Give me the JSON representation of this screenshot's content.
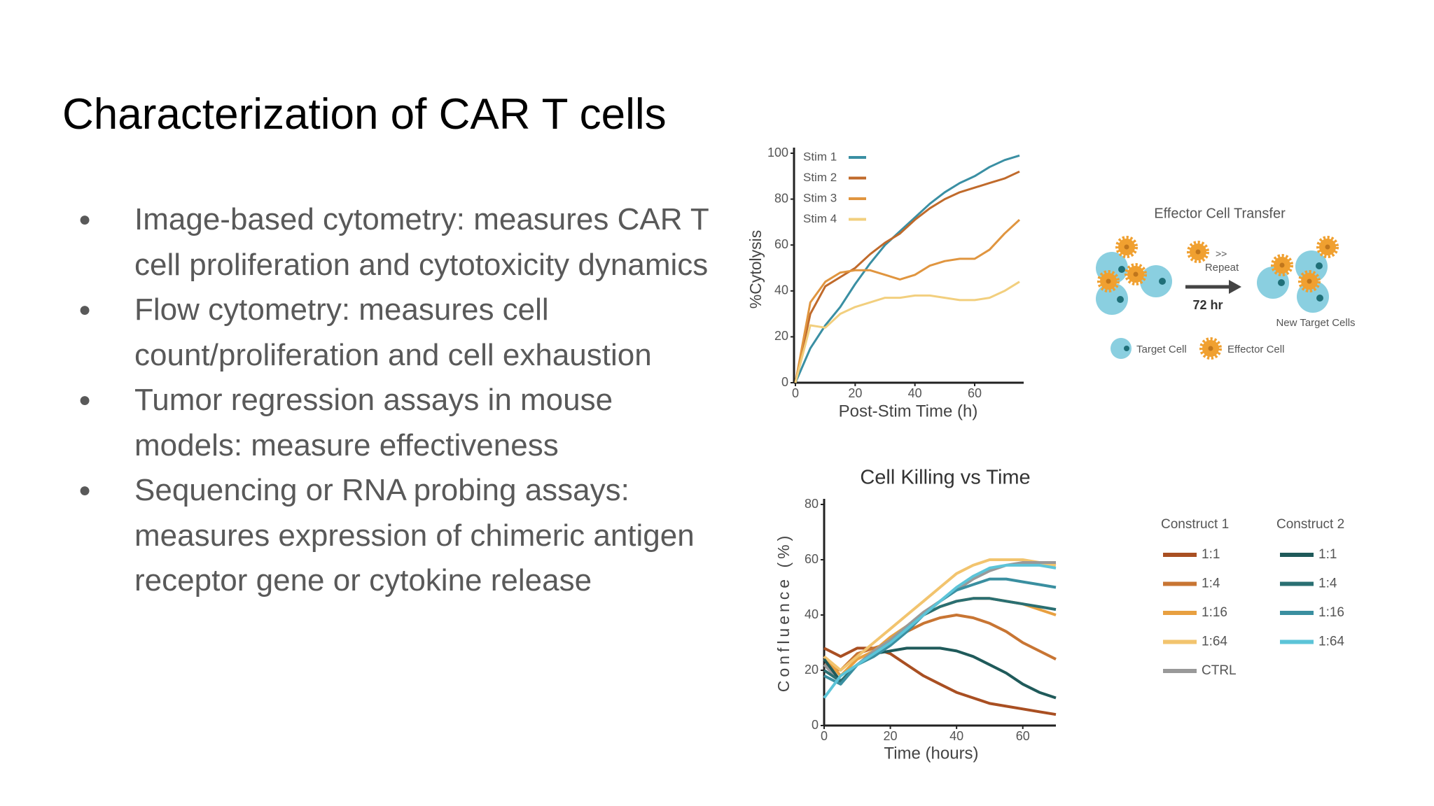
{
  "title": "Characterization of CAR T cells",
  "bullets": [
    "Image-based cytometry: measures CAR T cell proliferation and cytotoxicity dynamics",
    "Flow cytometry: measures cell count/proliferation and cell exhaustion",
    "Tumor regression assays in mouse models: measure effectiveness",
    "Sequencing or RNA probing assays: measures expression of chimeric antigen receptor gene or cytokine release"
  ],
  "chart_data": [
    {
      "type": "line",
      "ylabel": "%Cytolysis",
      "xlabel": "Post-Stim Time (h)",
      "x": [
        0,
        5,
        10,
        15,
        20,
        25,
        30,
        35,
        40,
        45,
        50,
        55,
        60,
        65,
        70,
        75
      ],
      "xlim": [
        0,
        75
      ],
      "xticks": [
        0,
        20,
        40,
        60
      ],
      "ylim": [
        0,
        100
      ],
      "yticks": [
        0,
        20,
        40,
        60,
        80,
        100
      ],
      "series": [
        {
          "name": "Stim 1",
          "color": "#3a8fa3",
          "values": [
            0,
            15,
            25,
            33,
            43,
            52,
            60,
            66,
            72,
            78,
            83,
            87,
            90,
            94,
            97,
            99
          ]
        },
        {
          "name": "Stim 2",
          "color": "#c06a2b",
          "values": [
            0,
            30,
            42,
            46,
            50,
            56,
            61,
            65,
            71,
            76,
            80,
            83,
            85,
            87,
            89,
            92
          ]
        },
        {
          "name": "Stim 3",
          "color": "#e0953f",
          "values": [
            0,
            35,
            44,
            48,
            49,
            49,
            47,
            45,
            47,
            51,
            53,
            54,
            54,
            58,
            65,
            71
          ]
        },
        {
          "name": "Stim 4",
          "color": "#f2cf7e",
          "values": [
            0,
            25,
            24,
            30,
            33,
            35,
            37,
            37,
            38,
            38,
            37,
            36,
            36,
            37,
            40,
            44
          ]
        }
      ]
    },
    {
      "type": "line",
      "title": "Cell Killing vs Time",
      "ylabel": "Confluence (%)",
      "xlabel": "Time (hours)",
      "x": [
        0,
        5,
        10,
        15,
        20,
        25,
        30,
        35,
        40,
        45,
        50,
        55,
        60,
        65,
        70
      ],
      "xlim": [
        0,
        70
      ],
      "xticks": [
        0,
        20,
        40,
        60
      ],
      "ylim": [
        0,
        80
      ],
      "yticks": [
        0,
        20,
        40,
        60,
        80
      ],
      "legend_groups": [
        {
          "title": "Construct 1"
        },
        {
          "title": "Construct 2"
        }
      ],
      "series": [
        {
          "name": "1:1",
          "group": 0,
          "color": "#a94f22",
          "values": [
            28,
            25,
            28,
            28,
            26,
            22,
            18,
            15,
            12,
            10,
            8,
            7,
            6,
            5,
            4
          ]
        },
        {
          "name": "1:4",
          "group": 0,
          "color": "#c87533",
          "values": [
            22,
            20,
            26,
            28,
            30,
            34,
            37,
            39,
            40,
            39,
            37,
            34,
            30,
            27,
            24
          ]
        },
        {
          "name": "1:16",
          "group": 0,
          "color": "#e8a040",
          "values": [
            25,
            18,
            24,
            27,
            32,
            36,
            40,
            43,
            45,
            46,
            46,
            45,
            44,
            42,
            40
          ]
        },
        {
          "name": "1:64",
          "group": 0,
          "color": "#f2c46e",
          "values": [
            25,
            20,
            25,
            30,
            35,
            40,
            45,
            50,
            55,
            58,
            60,
            60,
            60,
            59,
            58
          ]
        },
        {
          "name": "CTRL",
          "group": 0,
          "color": "#999999",
          "values": [
            22,
            16,
            22,
            27,
            31,
            36,
            41,
            45,
            49,
            53,
            56,
            58,
            59,
            59,
            59
          ]
        },
        {
          "name": "1:1",
          "group": 1,
          "color": "#1f5a5a",
          "values": [
            24,
            16,
            22,
            26,
            27,
            28,
            28,
            28,
            27,
            25,
            22,
            19,
            15,
            12,
            10
          ]
        },
        {
          "name": "1:4",
          "group": 1,
          "color": "#2a6f72",
          "values": [
            20,
            16,
            22,
            26,
            30,
            35,
            40,
            43,
            45,
            46,
            46,
            45,
            44,
            43,
            42
          ]
        },
        {
          "name": "1:16",
          "group": 1,
          "color": "#3a8fa0",
          "values": [
            18,
            15,
            22,
            25,
            29,
            34,
            40,
            45,
            49,
            51,
            53,
            53,
            52,
            51,
            50
          ]
        },
        {
          "name": "1:64",
          "group": 1,
          "color": "#5cc4d8",
          "values": [
            10,
            18,
            22,
            26,
            30,
            35,
            40,
            45,
            50,
            54,
            57,
            58,
            58,
            58,
            57
          ]
        }
      ]
    }
  ],
  "diagram": {
    "title": "Effector Cell Transfer",
    "repeat_mark": ">>",
    "repeat": "Repeat",
    "duration": "72 hr",
    "new_targets": "New Target Cells",
    "target_legend": "Target Cell",
    "effector_legend": "Effector Cell"
  }
}
